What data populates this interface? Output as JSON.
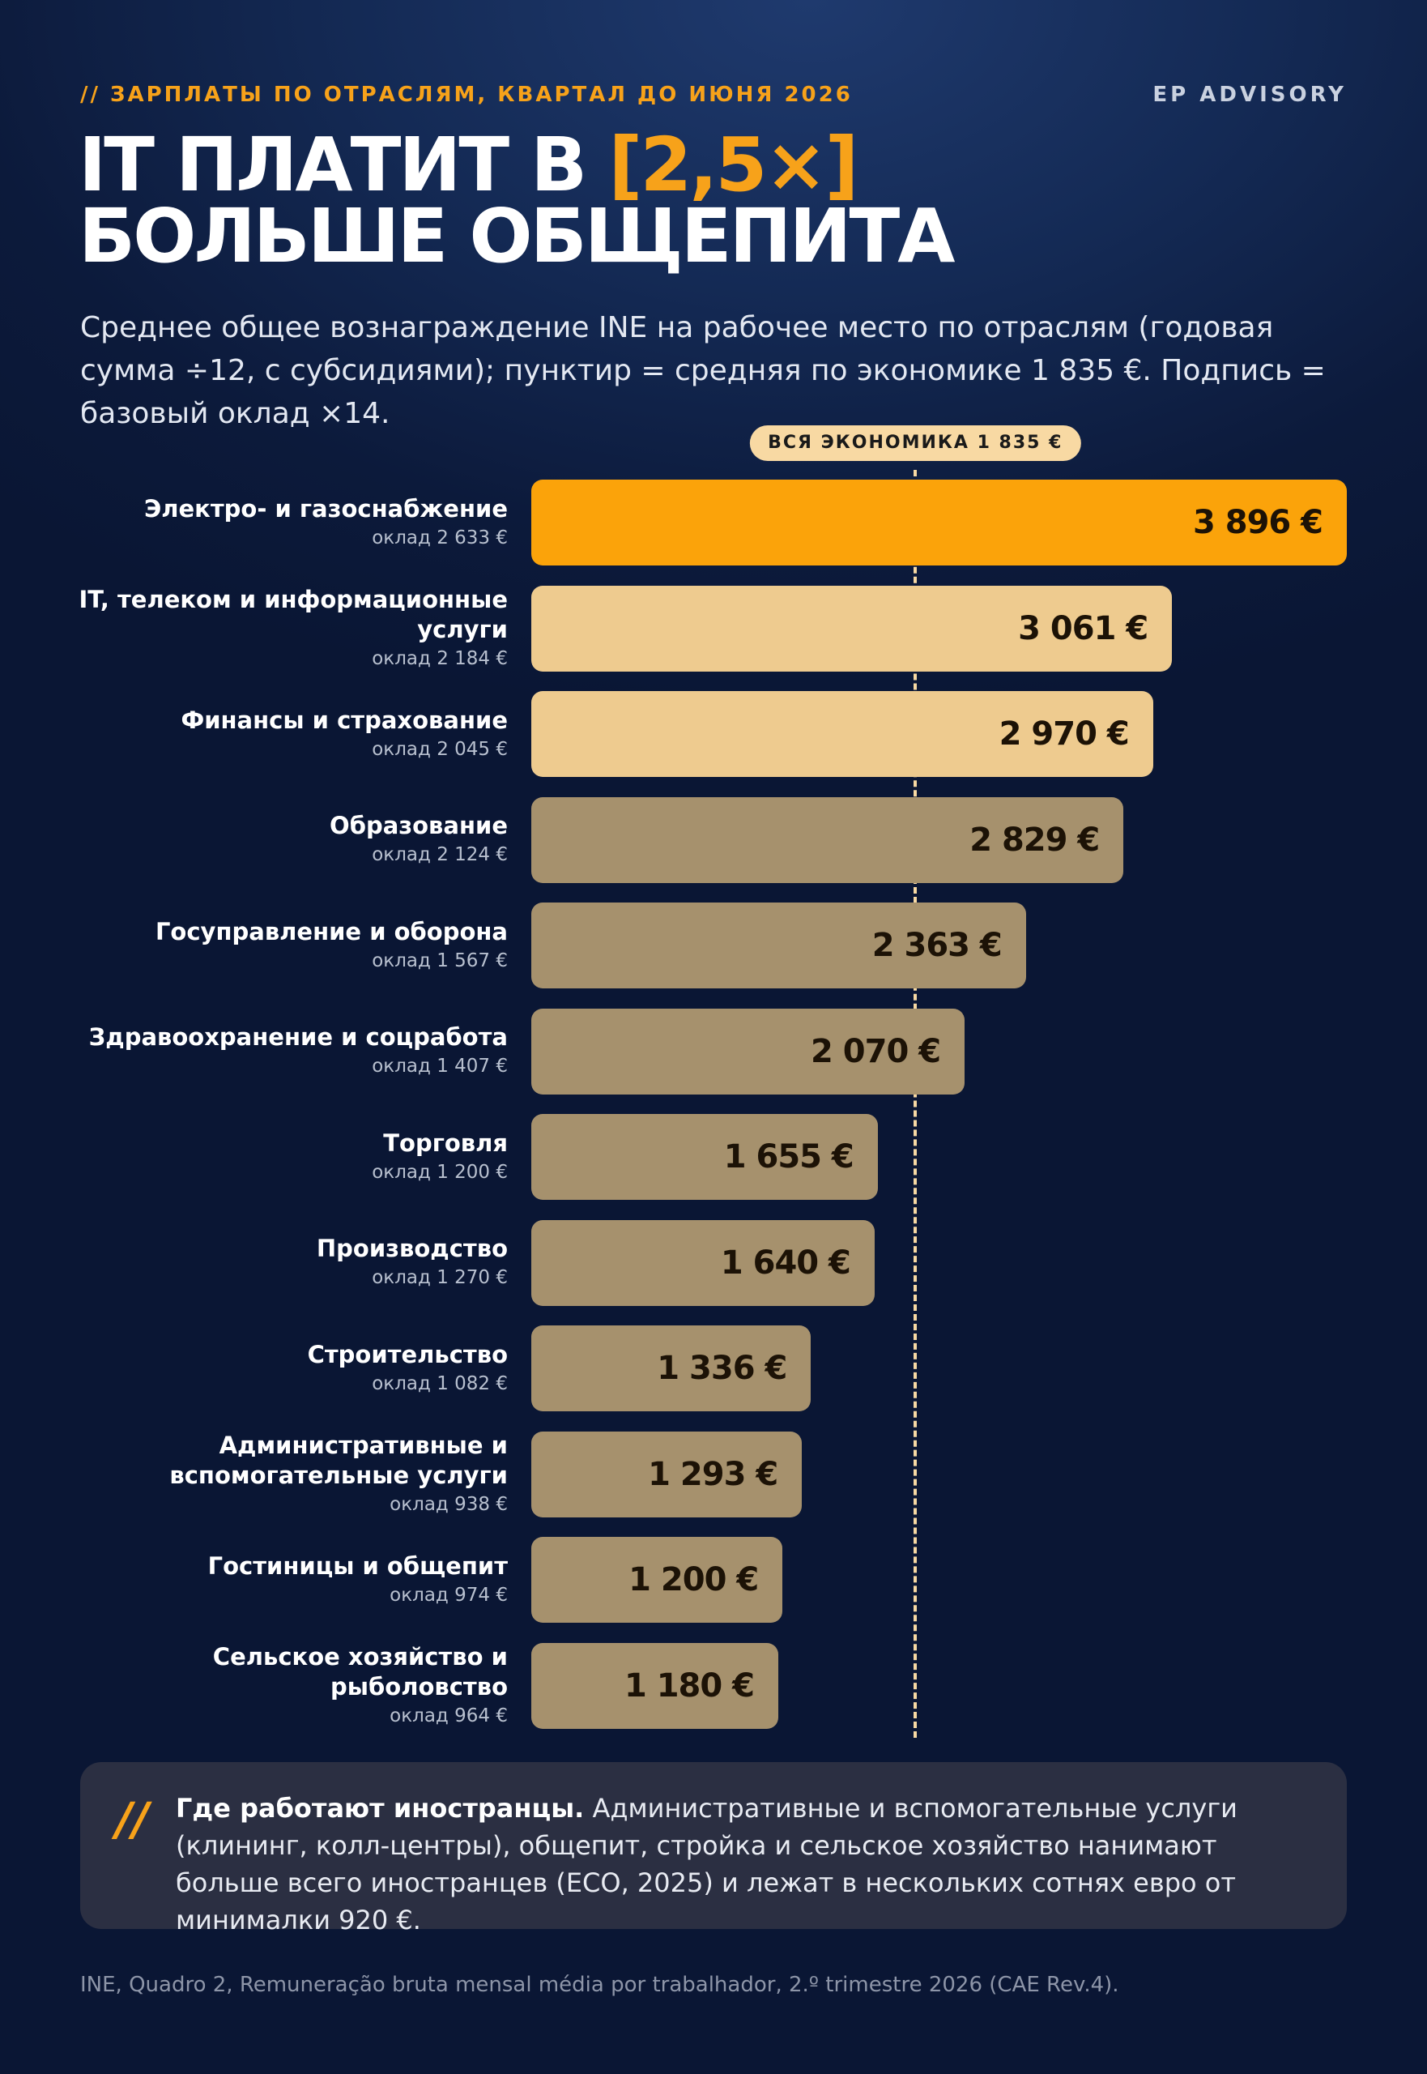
{
  "header": {
    "kicker_slashes": "//",
    "kicker": "ЗАРПЛАТЫ ПО ОТРАСЛЯМ, КВАРТАЛ ДО ИЮНЯ 2026",
    "brand": "EP ADVISORY",
    "headline_part1": "IT ПЛАТИТ В ",
    "headline_accent": "[2,5×]",
    "headline_line2": "БОЛЬШЕ ОБЩЕПИТА",
    "subtitle": "Среднее общее вознаграждение INE на рабочее место по отраслям (годовая сумма ÷12, с субсидиями); пунктир = средняя по экономике 1 835 €. Подпись = базовый оклад ×14."
  },
  "colors": {
    "accent": "#f7a21a",
    "bar_top": "#fba30a",
    "bar_light": "#eecb8f",
    "bar_mid": "#a6916d",
    "avg_line": "#f8d9a3"
  },
  "chart_data": {
    "type": "bar",
    "orientation": "horizontal",
    "reference_line": {
      "label": "ВСЯ ЭКОНОМИКА 1 835 €",
      "value": 1835
    },
    "xlim": [
      0,
      3896
    ],
    "categories": [
      "Электро- и газоснабжение",
      "IT, телеком и информационные услуги",
      "Финансы и страхование",
      "Образование",
      "Госуправление и оборона",
      "Здравоохранение и соцработа",
      "Торговля",
      "Производство",
      "Строительство",
      "Административные и вспомогательные услуги",
      "Гостиницы и общепит",
      "Сельское хозяйство и рыболовство"
    ],
    "values": [
      3896,
      3061,
      2970,
      2829,
      2363,
      2070,
      1655,
      1640,
      1336,
      1293,
      1200,
      1180
    ],
    "value_labels": [
      "3 896 €",
      "3 061 €",
      "2 970 €",
      "2 829 €",
      "2 363 €",
      "2 070 €",
      "1 655 €",
      "1 640 €",
      "1 336 €",
      "1 293 €",
      "1 200 €",
      "1 180 €"
    ],
    "sub_labels": [
      "оклад 2 633 €",
      "оклад 2 184 €",
      "оклад 2 045 €",
      "оклад 2 124 €",
      "оклад 1 567 €",
      "оклад 1 407 €",
      "оклад 1 200 €",
      "оклад 1 270 €",
      "оклад 1 082 €",
      "оклад 938 €",
      "оклад 974 €",
      "оклад 964 €"
    ],
    "bar_colors": [
      "#fba30a",
      "#eecb8f",
      "#eecb8f",
      "#a6916d",
      "#a6916d",
      "#a6916d",
      "#a6916d",
      "#a6916d",
      "#a6916d",
      "#a6916d",
      "#a6916d",
      "#a6916d"
    ]
  },
  "note": {
    "mark": "//",
    "title": "Где работают иностранцы.",
    "text": " Административные и вспомогательные услуги (клининг, колл-центры), общепит, стройка и сельское хозяйство нанимают больше всего иностранцев (ECO, 2025) и лежат в нескольких сотнях евро от минималки 920 €."
  },
  "source": "INE, Quadro 2, Remuneração bruta mensal média por trabalhador, 2.º trimestre 2026 (CAE Rev.4)."
}
